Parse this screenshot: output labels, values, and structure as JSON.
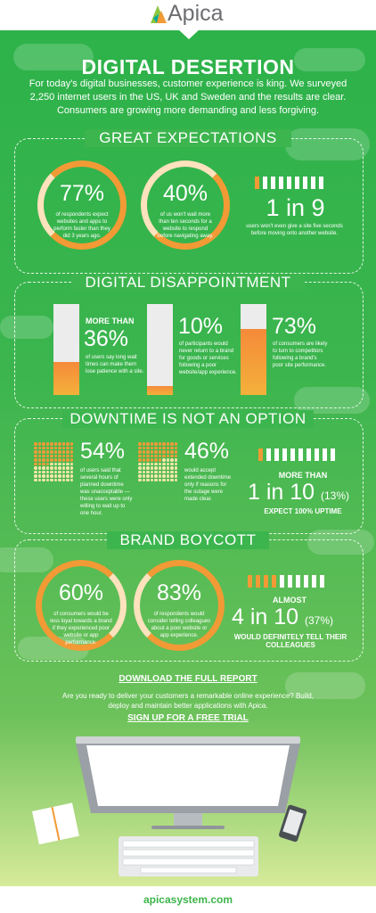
{
  "brand": {
    "name": "Apica"
  },
  "title": "DIGITAL DESERTION",
  "intro": "For today's digital businesses, customer experience is king. We surveyed 2,250 internet users in the US, UK and Sweden and the results are clear. Consumers are growing more demanding and less forgiving.",
  "colors": {
    "green": "#3cb54e",
    "orange": "#f29a35",
    "white": "#ffffff"
  },
  "great_expectations": {
    "heading": "GREAT EXPECTATIONS",
    "stat1": {
      "value": "77%",
      "text": "of respondents expect websites and apps to perform faster than they did 3 years ago."
    },
    "stat2": {
      "value": "40%",
      "text": "of us won't wait more than ten seconds for a website to respond before navigating away."
    },
    "stat3": {
      "value": "1 in 9",
      "text": "users won't even give a site five seconds before moving onto another website."
    }
  },
  "digital_disappointment": {
    "heading": "DIGITAL DISAPPOINTMENT",
    "stat1": {
      "prefix": "MORE THAN",
      "value": "36%",
      "fill": 0.36,
      "text": "of users say long wait times can make them lose patience with a site."
    },
    "stat2": {
      "value": "10%",
      "fill": 0.1,
      "text": "of participants would never return to a brand for goods or services following a poor website/app experience."
    },
    "stat3": {
      "value": "73%",
      "fill": 0.73,
      "text": "of consumers are likely to turn to competitors following a brand's poor site performance."
    }
  },
  "downtime": {
    "heading": "DOWNTIME IS NOT AN OPTION",
    "stat1": {
      "value": "54%",
      "fraction": 0.54,
      "text": "of users said that several hours of planned downtime was unacceptable —these users were only willing to wait up to one hour."
    },
    "stat2": {
      "value": "46%",
      "fraction": 0.46,
      "text": "would accept extended downtime only if reasons for the outage were made clear."
    },
    "stat3": {
      "prefix": "MORE THAN",
      "value": "1 in 10",
      "paren": "(13%)",
      "text": "EXPECT 100% UPTIME"
    }
  },
  "brand_boycott": {
    "heading": "BRAND BOYCOTT",
    "stat1": {
      "value": "60%",
      "text": "of consumers would be less loyal towards a brand if they experienced poor website or app performance."
    },
    "stat2": {
      "value": "83%",
      "text": "of respondents would consider telling colleagues about a poor website or app experience."
    },
    "stat3": {
      "prefix": "ALMOST",
      "value": "4 in 10",
      "paren": "(37%)",
      "text": "WOULD DEFINITELY TELL THEIR COLLEAGUES"
    }
  },
  "cta": {
    "download": "DOWNLOAD THE FULL REPORT",
    "question": "Are you ready to deliver your customers a remarkable online experience? Build, deploy and maintain better applications with Apica.",
    "signup": "SIGN UP FOR A FREE TRIAL"
  },
  "footer": {
    "url": "apicasystem.com"
  }
}
